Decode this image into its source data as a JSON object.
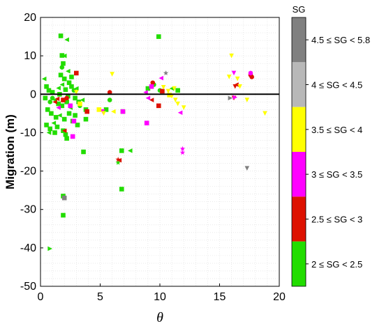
{
  "chart_data": {
    "type": "scatter",
    "xlabel": "θ",
    "ylabel": "Migration (m)",
    "xlim": [
      0,
      20
    ],
    "ylim": [
      -50,
      20
    ],
    "xticks": [
      0,
      5,
      10,
      15,
      20
    ],
    "yticks": [
      -50,
      -40,
      -30,
      -20,
      -10,
      0,
      10,
      20
    ],
    "grid": true,
    "zero_line": true,
    "legend_title": "SG",
    "legend_placement": "right-colorbar",
    "classes": [
      {
        "label": "4.5 ≤ SG < 5.8",
        "color": "#808080"
      },
      {
        "label": "4 ≤ SG < 4.5",
        "color": "#b8b8b8"
      },
      {
        "label": "3.5 ≤ SG < 4",
        "color": "#ffff00"
      },
      {
        "label": "3 ≤ SG < 3.5",
        "color": "#ff00ff"
      },
      {
        "label": "2.5 ≤ SG < 3",
        "color": "#dd1100"
      },
      {
        "label": "2 ≤ SG < 2.5",
        "color": "#22dd00"
      }
    ],
    "points": [
      {
        "x": 1.7,
        "y": 15.2,
        "m": "s",
        "c": 5
      },
      {
        "x": 2.2,
        "y": 14.2,
        "m": "tl",
        "c": 5
      },
      {
        "x": 1.8,
        "y": 10.1,
        "m": "s",
        "c": 5
      },
      {
        "x": 2.0,
        "y": 10.0,
        "m": "tl",
        "c": 5
      },
      {
        "x": 1.9,
        "y": 8.0,
        "m": "s",
        "c": 5
      },
      {
        "x": 1.8,
        "y": 7.0,
        "m": "o",
        "c": 5
      },
      {
        "x": 2.3,
        "y": 6.0,
        "m": "tl",
        "c": 5
      },
      {
        "x": 1.7,
        "y": 5.0,
        "m": "s",
        "c": 5
      },
      {
        "x": 2.0,
        "y": 4.0,
        "m": "s",
        "c": 5
      },
      {
        "x": 2.4,
        "y": 3.0,
        "m": "s",
        "c": 5
      },
      {
        "x": 1.8,
        "y": 2.5,
        "m": "tl",
        "c": 5
      },
      {
        "x": 2.6,
        "y": 2.0,
        "m": "s",
        "c": 5
      },
      {
        "x": 1.5,
        "y": 1.6,
        "m": "tl",
        "c": 5
      },
      {
        "x": 2.1,
        "y": 1.2,
        "m": "s",
        "c": 5
      },
      {
        "x": 2.8,
        "y": 1.0,
        "m": "o",
        "c": 5
      },
      {
        "x": 0.3,
        "y": 4.0,
        "m": "tl",
        "c": 5
      },
      {
        "x": 0.5,
        "y": 2.0,
        "m": "s",
        "c": 5
      },
      {
        "x": 0.7,
        "y": 1.0,
        "m": "s",
        "c": 5
      },
      {
        "x": 1.0,
        "y": 0.5,
        "m": "s",
        "c": 5
      },
      {
        "x": 0.4,
        "y": -1.0,
        "m": "s",
        "c": 5
      },
      {
        "x": 0.8,
        "y": -2.0,
        "m": "o",
        "c": 5
      },
      {
        "x": 1.2,
        "y": -1.5,
        "m": "tl",
        "c": 5
      },
      {
        "x": 1.5,
        "y": -2.5,
        "m": "s",
        "c": 5
      },
      {
        "x": 1.8,
        "y": -3.0,
        "m": "s",
        "c": 5
      },
      {
        "x": 2.2,
        "y": -2.0,
        "m": "s",
        "c": 5
      },
      {
        "x": 2.5,
        "y": -3.5,
        "m": "tl",
        "c": 5
      },
      {
        "x": 2.9,
        "y": -1.0,
        "m": "s",
        "c": 5
      },
      {
        "x": 3.2,
        "y": -2.0,
        "m": "s",
        "c": 5
      },
      {
        "x": 3.5,
        "y": -1.5,
        "m": "tl",
        "c": 5
      },
      {
        "x": 3.8,
        "y": -4.0,
        "m": "s",
        "c": 5
      },
      {
        "x": 0.6,
        "y": -4.0,
        "m": "s",
        "c": 5
      },
      {
        "x": 0.9,
        "y": -5.0,
        "m": "s",
        "c": 5
      },
      {
        "x": 1.3,
        "y": -6.0,
        "m": "s",
        "c": 5
      },
      {
        "x": 1.6,
        "y": -5.5,
        "m": "tl",
        "c": 5
      },
      {
        "x": 2.0,
        "y": -6.5,
        "m": "s",
        "c": 5
      },
      {
        "x": 2.4,
        "y": -5.0,
        "m": "s",
        "c": 5
      },
      {
        "x": 2.7,
        "y": -7.0,
        "m": "s",
        "c": 5
      },
      {
        "x": 1.1,
        "y": -7.5,
        "m": "tl",
        "c": 5
      },
      {
        "x": 0.5,
        "y": -8.0,
        "m": "s",
        "c": 5
      },
      {
        "x": 0.8,
        "y": -9.0,
        "m": "s",
        "c": 5
      },
      {
        "x": 1.4,
        "y": -8.5,
        "m": "s",
        "c": 5
      },
      {
        "x": 1.9,
        "y": -9.5,
        "m": "s",
        "c": 5
      },
      {
        "x": 2.1,
        "y": -10.5,
        "m": "s",
        "c": 5
      },
      {
        "x": 2.2,
        "y": -11.5,
        "m": "s",
        "c": 5
      },
      {
        "x": 0.7,
        "y": -10.0,
        "m": "tl",
        "c": 5
      },
      {
        "x": 1.2,
        "y": -10.0,
        "m": "s",
        "c": 5
      },
      {
        "x": 3.6,
        "y": -15.0,
        "m": "s",
        "c": 5
      },
      {
        "x": 3.8,
        "y": -6.5,
        "m": "s",
        "c": 5
      },
      {
        "x": 3.3,
        "y": -3.0,
        "m": "o",
        "c": 5
      },
      {
        "x": 3.0,
        "y": 1.5,
        "m": "tl",
        "c": 5
      },
      {
        "x": 2.6,
        "y": 4.5,
        "m": "s",
        "c": 5
      },
      {
        "x": 2.3,
        "y": -0.5,
        "m": "s",
        "c": 5
      },
      {
        "x": 1.6,
        "y": 0.0,
        "m": "s",
        "c": 5
      },
      {
        "x": 2.9,
        "y": -5.5,
        "m": "s",
        "c": 5
      },
      {
        "x": 1.0,
        "y": -1.0,
        "m": "o",
        "c": 5
      },
      {
        "x": 3.1,
        "y": -8.0,
        "m": "s",
        "c": 5
      },
      {
        "x": 1.9,
        "y": -26.5,
        "m": "s",
        "c": 5
      },
      {
        "x": 1.9,
        "y": -31.5,
        "m": "s",
        "c": 5
      },
      {
        "x": 0.8,
        "y": -40.2,
        "m": "tr",
        "c": 5
      },
      {
        "x": 6.8,
        "y": -14.7,
        "m": "s",
        "c": 5
      },
      {
        "x": 7.5,
        "y": -14.7,
        "m": "tl",
        "c": 5
      },
      {
        "x": 6.8,
        "y": -24.7,
        "m": "s",
        "c": 5
      },
      {
        "x": 6.5,
        "y": -17.0,
        "m": "star",
        "c": 4
      },
      {
        "x": 6.5,
        "y": -17.8,
        "m": "star",
        "c": 5
      },
      {
        "x": 5.8,
        "y": -1.5,
        "m": "o",
        "c": 5
      },
      {
        "x": 5.5,
        "y": -4.0,
        "m": "s",
        "c": 5
      },
      {
        "x": 6.9,
        "y": -4.5,
        "m": "s",
        "c": 5
      },
      {
        "x": 9.9,
        "y": 15.0,
        "m": "s",
        "c": 5
      },
      {
        "x": 9.0,
        "y": 1.5,
        "m": "s",
        "c": 5
      },
      {
        "x": 9.5,
        "y": 2.5,
        "m": "o",
        "c": 5
      },
      {
        "x": 10.0,
        "y": 1.0,
        "m": "o",
        "c": 5
      },
      {
        "x": 11.0,
        "y": 1.5,
        "m": "tl",
        "c": 5
      },
      {
        "x": 11.5,
        "y": 1.0,
        "m": "s",
        "c": 5
      },
      {
        "x": 2.2,
        "y": -1.0,
        "m": "o",
        "c": 4
      },
      {
        "x": 3.0,
        "y": 5.5,
        "m": "s",
        "c": 4
      },
      {
        "x": 2.0,
        "y": -9.5,
        "m": "tl",
        "c": 4
      },
      {
        "x": 1.2,
        "y": -2.0,
        "m": "tl",
        "c": 4
      },
      {
        "x": 3.9,
        "y": -4.5,
        "m": "s",
        "c": 4
      },
      {
        "x": 5.8,
        "y": 0.5,
        "m": "o",
        "c": 4
      },
      {
        "x": 9.4,
        "y": 3.0,
        "m": "o",
        "c": 4
      },
      {
        "x": 9.9,
        "y": -3.0,
        "m": "s",
        "c": 4
      },
      {
        "x": 10.2,
        "y": 0.8,
        "m": "s",
        "c": 4
      },
      {
        "x": 9.3,
        "y": -1.5,
        "m": "tl",
        "c": 4
      },
      {
        "x": 16.4,
        "y": 2.5,
        "m": "tl",
        "c": 4
      },
      {
        "x": 16.2,
        "y": -1.0,
        "m": "tv",
        "c": 4
      },
      {
        "x": 17.6,
        "y": 5.0,
        "m": "o",
        "c": 4
      },
      {
        "x": 17.7,
        "y": 4.5,
        "m": "o",
        "c": 4
      },
      {
        "x": 6.6,
        "y": -17.2,
        "m": "tl",
        "c": 4
      },
      {
        "x": 2.5,
        "y": -3.0,
        "m": "s",
        "c": 3
      },
      {
        "x": 2.8,
        "y": -7.0,
        "m": "s",
        "c": 3
      },
      {
        "x": 1.5,
        "y": -3.5,
        "m": "tl",
        "c": 3
      },
      {
        "x": 2.7,
        "y": -11.0,
        "m": "s",
        "c": 3
      },
      {
        "x": 6.9,
        "y": -4.5,
        "m": "s",
        "c": 3
      },
      {
        "x": 5.2,
        "y": -4.5,
        "m": "tv",
        "c": 3
      },
      {
        "x": 8.9,
        "y": -7.5,
        "m": "s",
        "c": 3
      },
      {
        "x": 9.0,
        "y": -1.0,
        "m": "tl",
        "c": 3
      },
      {
        "x": 8.8,
        "y": 0.5,
        "m": "tl",
        "c": 3
      },
      {
        "x": 9.3,
        "y": 2.0,
        "m": "s",
        "c": 3
      },
      {
        "x": 10.1,
        "y": 4.2,
        "m": "tl",
        "c": 3
      },
      {
        "x": 11.7,
        "y": -4.8,
        "m": "tl",
        "c": 3
      },
      {
        "x": 11.9,
        "y": -14.2,
        "m": "star",
        "c": 3
      },
      {
        "x": 11.9,
        "y": -15.2,
        "m": "star",
        "c": 3
      },
      {
        "x": 16.2,
        "y": 5.5,
        "m": "tv",
        "c": 3
      },
      {
        "x": 17.6,
        "y": 5.5,
        "m": "o",
        "c": 3
      },
      {
        "x": 16.3,
        "y": -0.8,
        "m": "tr",
        "c": 3
      },
      {
        "x": 3.0,
        "y": 0.5,
        "m": "tv",
        "c": 2
      },
      {
        "x": 3.3,
        "y": -2.5,
        "m": "s",
        "c": 2
      },
      {
        "x": 4.9,
        "y": -4.0,
        "m": "s",
        "c": 2
      },
      {
        "x": 5.3,
        "y": -5.0,
        "m": "tv",
        "c": 2
      },
      {
        "x": 6.0,
        "y": 5.2,
        "m": "tv",
        "c": 2
      },
      {
        "x": 6.1,
        "y": -4.5,
        "m": "tl",
        "c": 2
      },
      {
        "x": 10.3,
        "y": 1.8,
        "m": "tv",
        "c": 2
      },
      {
        "x": 10.7,
        "y": 0.8,
        "m": "tv",
        "c": 2
      },
      {
        "x": 11.0,
        "y": -0.5,
        "m": "tv",
        "c": 2
      },
      {
        "x": 11.3,
        "y": -1.5,
        "m": "tv",
        "c": 2
      },
      {
        "x": 11.5,
        "y": -2.5,
        "m": "tv",
        "c": 2
      },
      {
        "x": 12.0,
        "y": -3.5,
        "m": "tv",
        "c": 2
      },
      {
        "x": 11.2,
        "y": 1.5,
        "m": "tv",
        "c": 2
      },
      {
        "x": 15.8,
        "y": 4.5,
        "m": "tv",
        "c": 2
      },
      {
        "x": 16.0,
        "y": 10.0,
        "m": "tv",
        "c": 2
      },
      {
        "x": 16.7,
        "y": 2.0,
        "m": "tv",
        "c": 2
      },
      {
        "x": 17.3,
        "y": -1.5,
        "m": "tv",
        "c": 2
      },
      {
        "x": 18.8,
        "y": -5.0,
        "m": "tv",
        "c": 2
      },
      {
        "x": 16.5,
        "y": 4.0,
        "m": "tv",
        "c": 2
      },
      {
        "x": 10.8,
        "y": -0.2,
        "m": "s",
        "c": 2
      },
      {
        "x": 10.5,
        "y": 5.5,
        "m": "star",
        "c": 0
      },
      {
        "x": 15.9,
        "y": -1.0,
        "m": "tr",
        "c": 0
      },
      {
        "x": 17.3,
        "y": -19.3,
        "m": "tv",
        "c": 0
      },
      {
        "x": 2.0,
        "y": -27.0,
        "m": "s",
        "c": 0
      },
      {
        "x": 1.9,
        "y": -1.5,
        "m": "s",
        "c": 4
      },
      {
        "x": 1.4,
        "y": -1.2,
        "m": "tl",
        "c": 4
      },
      {
        "x": 16.3,
        "y": 2.0,
        "m": "tv",
        "c": 4
      }
    ]
  }
}
